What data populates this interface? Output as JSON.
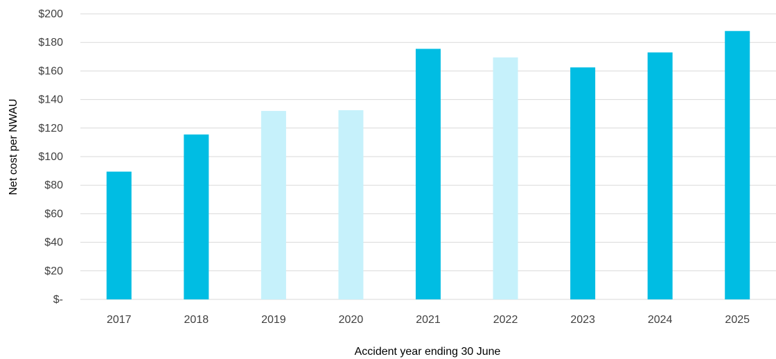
{
  "chart_data": {
    "type": "bar",
    "title": "",
    "xlabel": "Accident year ending 30 June",
    "ylabel": "Net cost per NWAU",
    "categories": [
      "2017",
      "2018",
      "2019",
      "2020",
      "2021",
      "2022",
      "2023",
      "2024",
      "2025"
    ],
    "values": [
      89.5,
      115.5,
      132,
      132.5,
      175.5,
      169.5,
      162.5,
      173,
      188
    ],
    "bar_colors": [
      "#00BDE3",
      "#00BDE3",
      "#C6F1FB",
      "#C6F1FB",
      "#00BDE3",
      "#C6F1FB",
      "#00BDE3",
      "#00BDE3",
      "#00BDE3"
    ],
    "ylim": [
      0,
      200
    ],
    "y_ticks": [
      0,
      20,
      40,
      60,
      80,
      100,
      120,
      140,
      160,
      180,
      200
    ],
    "y_tick_labels": [
      "$-",
      "$20",
      "$40",
      "$60",
      "$80",
      "$100",
      "$120",
      "$140",
      "$160",
      "$180",
      "$200"
    ],
    "grid": true,
    "gridline_color": "#D9D9D9",
    "legend": "none"
  }
}
